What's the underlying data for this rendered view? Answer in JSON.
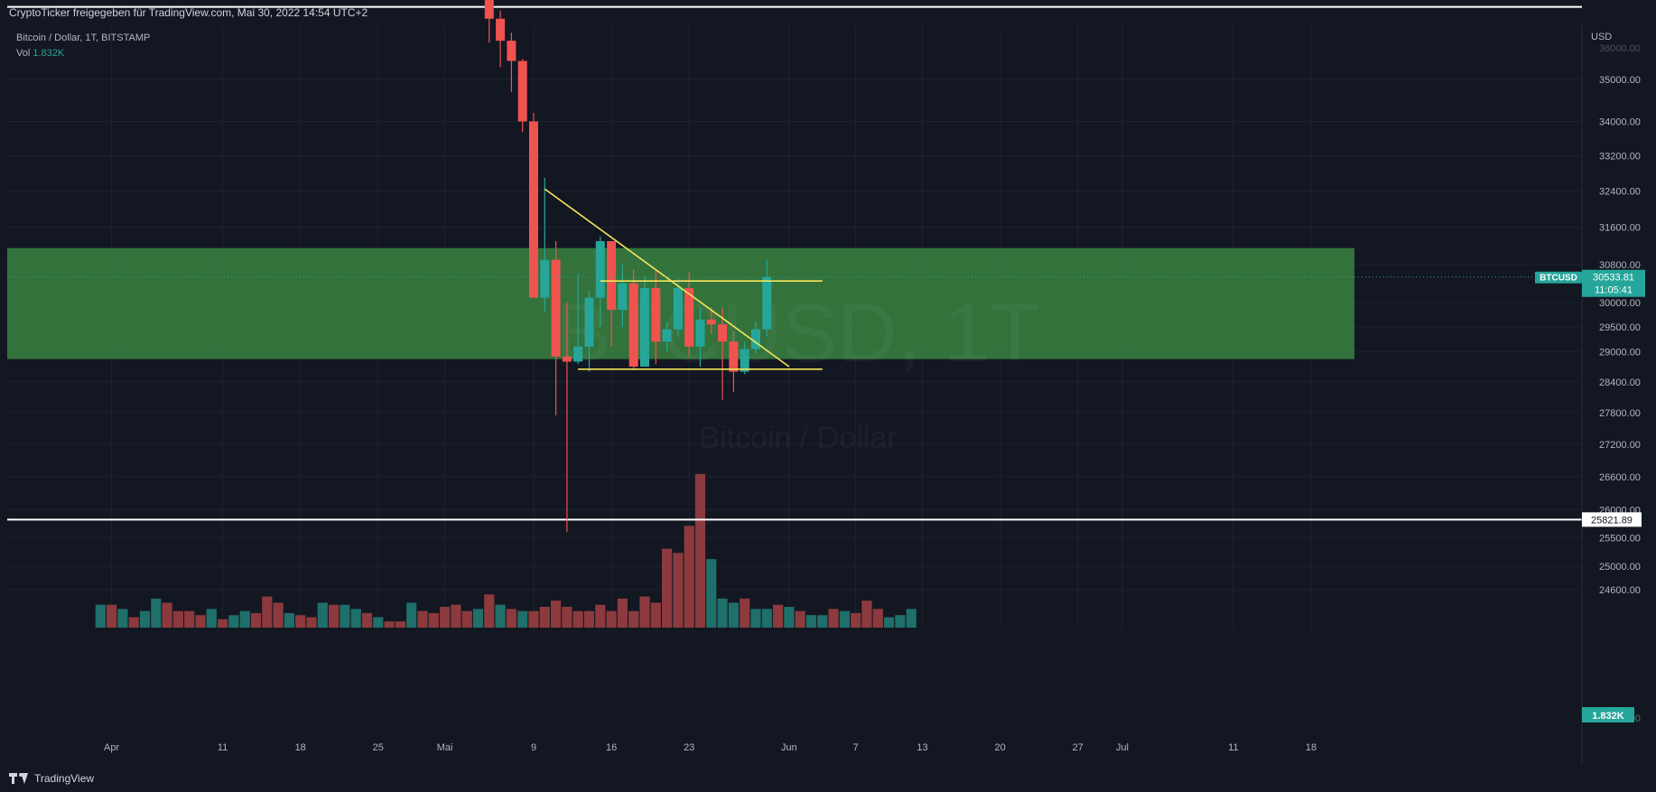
{
  "header": {
    "title": "CryptoTicker freigegeben für TradingView.com, Mai 30, 2022 14:54 UTC+2"
  },
  "legend": {
    "symbol_line": "Bitcoin / Dollar, 1T, BITSTAMP",
    "vol_label": "Vol",
    "vol_value": "1.832K"
  },
  "watermark": {
    "line1": "BTCUSD, 1T",
    "line2": "Bitcoin / Dollar"
  },
  "footer": {
    "brand": "TradingView"
  },
  "price_axis": {
    "currency": "USD",
    "price_label_symbol": "BTCUSD",
    "price_label_value": "30533.81",
    "price_label_countdown": "11:05:41",
    "level_label": "25821.89",
    "volume_label": "1.832K",
    "top_clipped_label": "36000.00",
    "bottom_clipped_label": "24200.00"
  },
  "colors": {
    "bull": "#26a69a",
    "bear": "#ef5350",
    "bull_vol": "#1f6f6a",
    "bear_vol": "#8c3a3d",
    "zone": "#3c8c42",
    "trendline": "#f5e65a",
    "level": "#ffffff",
    "background": "#131722",
    "grid": "#1e222d"
  },
  "chart_data": {
    "type": "candlestick",
    "title": "Bitcoin / Dollar, 1T, BITSTAMP",
    "scale": "log",
    "y_ticks": [
      24600,
      25000,
      25500,
      26000,
      26600,
      27200,
      27800,
      28400,
      29000,
      29500,
      30000,
      30800,
      31600,
      32400,
      33200,
      34000,
      35000
    ],
    "x_ticks": [
      {
        "label": "Apr",
        "date": "2022-04-01"
      },
      {
        "label": "11",
        "date": "2022-04-11"
      },
      {
        "label": "18",
        "date": "2022-04-18"
      },
      {
        "label": "25",
        "date": "2022-04-25"
      },
      {
        "label": "Mai",
        "date": "2022-05-01"
      },
      {
        "label": "9",
        "date": "2022-05-09"
      },
      {
        "label": "16",
        "date": "2022-05-16"
      },
      {
        "label": "23",
        "date": "2022-05-23"
      },
      {
        "label": "Jun",
        "date": "2022-06-01"
      },
      {
        "label": "7",
        "date": "2022-06-07"
      },
      {
        "label": "13",
        "date": "2022-06-13"
      },
      {
        "label": "20",
        "date": "2022-06-20"
      },
      {
        "label": "27",
        "date": "2022-06-27"
      },
      {
        "label": "Jul",
        "date": "2022-07-01"
      },
      {
        "label": "11",
        "date": "2022-07-11"
      },
      {
        "label": "18",
        "date": "2022-07-18"
      }
    ],
    "candles": [
      {
        "date": "2022-05-05",
        "open": 39600,
        "high": 40000,
        "low": 35900,
        "close": 36500
      },
      {
        "date": "2022-05-06",
        "open": 36500,
        "high": 36700,
        "low": 35300,
        "close": 35950
      },
      {
        "date": "2022-05-07",
        "open": 35950,
        "high": 36150,
        "low": 34700,
        "close": 35450
      },
      {
        "date": "2022-05-08",
        "open": 35450,
        "high": 35500,
        "low": 33750,
        "close": 34000
      },
      {
        "date": "2022-05-09",
        "open": 34000,
        "high": 34200,
        "low": 30100,
        "close": 30100
      },
      {
        "date": "2022-05-10",
        "open": 30100,
        "high": 32700,
        "low": 29800,
        "close": 30900
      },
      {
        "date": "2022-05-11",
        "open": 30900,
        "high": 31300,
        "low": 27750,
        "close": 28900
      },
      {
        "date": "2022-05-12",
        "open": 28900,
        "high": 30000,
        "low": 25600,
        "close": 28800
      },
      {
        "date": "2022-05-13",
        "open": 28800,
        "high": 30600,
        "low": 28750,
        "close": 29100
      },
      {
        "date": "2022-05-14",
        "open": 29100,
        "high": 30250,
        "low": 28600,
        "close": 30100
      },
      {
        "date": "2022-05-15",
        "open": 30100,
        "high": 31400,
        "low": 29500,
        "close": 31300
      },
      {
        "date": "2022-05-16",
        "open": 31300,
        "high": 31300,
        "low": 29100,
        "close": 29850
      },
      {
        "date": "2022-05-17",
        "open": 29850,
        "high": 30800,
        "low": 29500,
        "close": 30400
      },
      {
        "date": "2022-05-18",
        "open": 30400,
        "high": 30700,
        "low": 28650,
        "close": 28700
      },
      {
        "date": "2022-05-19",
        "open": 28700,
        "high": 30550,
        "low": 28700,
        "close": 30300
      },
      {
        "date": "2022-05-20",
        "open": 30300,
        "high": 30700,
        "low": 28750,
        "close": 29200
      },
      {
        "date": "2022-05-21",
        "open": 29200,
        "high": 29600,
        "low": 29000,
        "close": 29450
      },
      {
        "date": "2022-05-22",
        "open": 29450,
        "high": 30500,
        "low": 29300,
        "close": 30300
      },
      {
        "date": "2022-05-23",
        "open": 30300,
        "high": 30650,
        "low": 28900,
        "close": 29100
      },
      {
        "date": "2022-05-24",
        "open": 29100,
        "high": 29900,
        "low": 28700,
        "close": 29650
      },
      {
        "date": "2022-05-25",
        "open": 29650,
        "high": 29900,
        "low": 29350,
        "close": 29550
      },
      {
        "date": "2022-05-26",
        "open": 29550,
        "high": 29900,
        "low": 28050,
        "close": 29200
      },
      {
        "date": "2022-05-27",
        "open": 29200,
        "high": 29400,
        "low": 28200,
        "close": 28600
      },
      {
        "date": "2022-05-28",
        "open": 28600,
        "high": 29200,
        "low": 28550,
        "close": 29050
      },
      {
        "date": "2022-05-29",
        "open": 29050,
        "high": 29600,
        "low": 28950,
        "close": 29450
      },
      {
        "date": "2022-05-30",
        "open": 29450,
        "high": 30900,
        "low": 29300,
        "close": 30533.81
      }
    ],
    "volume_series": {
      "name": "Vol",
      "bars": [
        {
          "date": "2022-03-31",
          "up": true,
          "value": 0.11
        },
        {
          "date": "2022-04-01",
          "up": false,
          "value": 0.11
        },
        {
          "date": "2022-04-02",
          "up": true,
          "value": 0.09
        },
        {
          "date": "2022-04-03",
          "up": false,
          "value": 0.05
        },
        {
          "date": "2022-04-04",
          "up": true,
          "value": 0.08
        },
        {
          "date": "2022-04-05",
          "up": true,
          "value": 0.14
        },
        {
          "date": "2022-04-06",
          "up": false,
          "value": 0.12
        },
        {
          "date": "2022-04-07",
          "up": false,
          "value": 0.08
        },
        {
          "date": "2022-04-08",
          "up": false,
          "value": 0.08
        },
        {
          "date": "2022-04-09",
          "up": false,
          "value": 0.06
        },
        {
          "date": "2022-04-10",
          "up": true,
          "value": 0.09
        },
        {
          "date": "2022-04-11",
          "up": false,
          "value": 0.04
        },
        {
          "date": "2022-04-12",
          "up": true,
          "value": 0.06
        },
        {
          "date": "2022-04-13",
          "up": true,
          "value": 0.08
        },
        {
          "date": "2022-04-14",
          "up": false,
          "value": 0.07
        },
        {
          "date": "2022-04-15",
          "up": false,
          "value": 0.15
        },
        {
          "date": "2022-04-16",
          "up": false,
          "value": 0.12
        },
        {
          "date": "2022-04-17",
          "up": true,
          "value": 0.07
        },
        {
          "date": "2022-04-18",
          "up": false,
          "value": 0.06
        },
        {
          "date": "2022-04-19",
          "up": false,
          "value": 0.05
        },
        {
          "date": "2022-04-20",
          "up": true,
          "value": 0.12
        },
        {
          "date": "2022-04-21",
          "up": false,
          "value": 0.11
        },
        {
          "date": "2022-04-22",
          "up": true,
          "value": 0.11
        },
        {
          "date": "2022-04-23",
          "up": true,
          "value": 0.09
        },
        {
          "date": "2022-04-24",
          "up": false,
          "value": 0.07
        },
        {
          "date": "2022-04-25",
          "up": true,
          "value": 0.05
        },
        {
          "date": "2022-04-26",
          "up": false,
          "value": 0.03
        },
        {
          "date": "2022-04-27",
          "up": false,
          "value": 0.03
        },
        {
          "date": "2022-04-28",
          "up": true,
          "value": 0.12
        },
        {
          "date": "2022-04-29",
          "up": false,
          "value": 0.08
        },
        {
          "date": "2022-04-30",
          "up": false,
          "value": 0.07
        },
        {
          "date": "2022-05-01",
          "up": false,
          "value": 0.1
        },
        {
          "date": "2022-05-02",
          "up": false,
          "value": 0.11
        },
        {
          "date": "2022-05-03",
          "up": false,
          "value": 0.08
        },
        {
          "date": "2022-05-04",
          "up": true,
          "value": 0.09
        },
        {
          "date": "2022-05-05",
          "up": false,
          "value": 0.16
        },
        {
          "date": "2022-05-06",
          "up": true,
          "value": 0.11
        },
        {
          "date": "2022-05-07",
          "up": false,
          "value": 0.09
        },
        {
          "date": "2022-05-08",
          "up": true,
          "value": 0.08
        },
        {
          "date": "2022-05-09",
          "up": false,
          "value": 0.08
        },
        {
          "date": "2022-05-10",
          "up": false,
          "value": 0.1
        },
        {
          "date": "2022-05-11",
          "up": false,
          "value": 0.13
        },
        {
          "date": "2022-05-12",
          "up": false,
          "value": 0.1
        },
        {
          "date": "2022-05-13",
          "up": false,
          "value": 0.08
        },
        {
          "date": "2022-05-14",
          "up": false,
          "value": 0.08
        },
        {
          "date": "2022-05-15",
          "up": false,
          "value": 0.11
        },
        {
          "date": "2022-05-16",
          "up": false,
          "value": 0.08
        },
        {
          "date": "2022-05-17",
          "up": false,
          "value": 0.14
        },
        {
          "date": "2022-05-18",
          "up": false,
          "value": 0.08
        },
        {
          "date": "2022-05-19",
          "up": false,
          "value": 0.15
        },
        {
          "date": "2022-05-20",
          "up": false,
          "value": 0.12
        },
        {
          "date": "2022-05-21",
          "up": false,
          "value": 0.38
        },
        {
          "date": "2022-05-22",
          "up": false,
          "value": 0.36
        },
        {
          "date": "2022-05-23",
          "up": false,
          "value": 0.49
        },
        {
          "date": "2022-05-24",
          "up": false,
          "value": 0.74
        },
        {
          "date": "2022-05-25",
          "up": true,
          "value": 0.33
        },
        {
          "date": "2022-05-26",
          "up": true,
          "value": 0.14
        },
        {
          "date": "2022-05-27",
          "up": true,
          "value": 0.12
        },
        {
          "date": "2022-05-28",
          "up": false,
          "value": 0.14
        },
        {
          "date": "2022-05-29",
          "up": true,
          "value": 0.09
        },
        {
          "date": "2022-05-30",
          "up": true,
          "value": 0.09
        },
        {
          "date": "2022-05-31",
          "up": false,
          "value": 0.11
        },
        {
          "date": "2022-06-01",
          "up": true,
          "value": 0.1
        },
        {
          "date": "2022-06-02",
          "up": false,
          "value": 0.08
        },
        {
          "date": "2022-06-03",
          "up": true,
          "value": 0.06
        },
        {
          "date": "2022-06-04",
          "up": true,
          "value": 0.06
        },
        {
          "date": "2022-06-05",
          "up": false,
          "value": 0.09
        },
        {
          "date": "2022-06-06",
          "up": true,
          "value": 0.08
        },
        {
          "date": "2022-06-07",
          "up": false,
          "value": 0.07
        },
        {
          "date": "2022-06-08",
          "up": false,
          "value": 0.13
        },
        {
          "date": "2022-06-09",
          "up": false,
          "value": 0.09
        },
        {
          "date": "2022-06-10",
          "up": true,
          "value": 0.05
        },
        {
          "date": "2022-06-11",
          "up": true,
          "value": 0.06
        },
        {
          "date": "2022-06-12",
          "up": true,
          "value": 0.09
        }
      ]
    },
    "zones": [
      {
        "type": "support-resistance-zone",
        "from": 28850,
        "to": 31150,
        "color": "#3c8c42"
      }
    ],
    "levels": [
      {
        "price": 36800,
        "color": "#ffffff"
      },
      {
        "price": 25821.89,
        "color": "#ffffff"
      }
    ],
    "trendlines": [
      {
        "from_date": "2022-05-10",
        "from_price": 32450,
        "to_date": "2022-06-01",
        "to_price": 28700
      },
      {
        "from_date": "2022-05-15",
        "from_price": 30450,
        "to_date": "2022-06-04",
        "to_price": 30450
      },
      {
        "from_date": "2022-05-13",
        "from_price": 28650,
        "to_date": "2022-06-04",
        "to_price": 28650
      }
    ],
    "last_price": 30533.81
  }
}
